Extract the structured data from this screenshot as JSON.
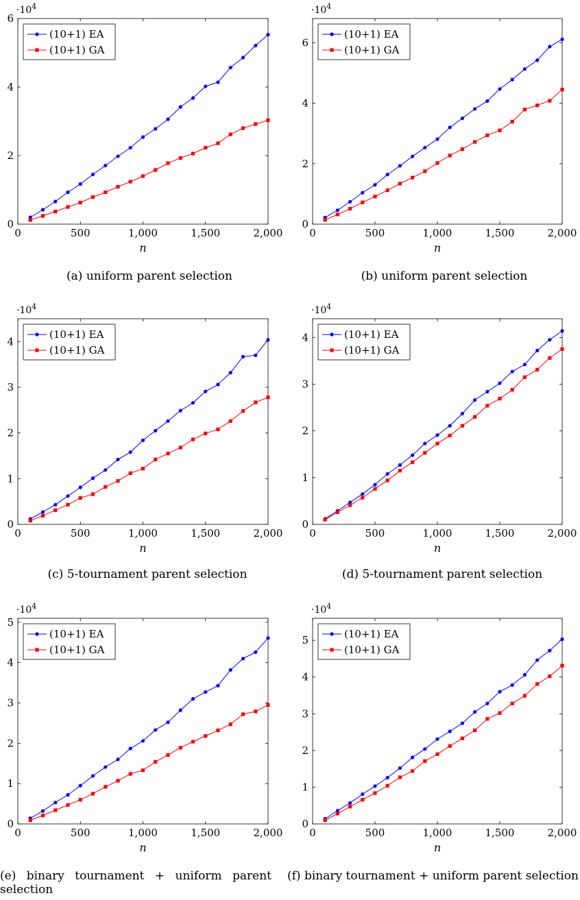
{
  "charts": [
    {
      "caption": "(a)  uniform parent selection",
      "chart_data": {
        "type": "line",
        "x": [
          100,
          200,
          300,
          400,
          500,
          600,
          700,
          800,
          900,
          1000,
          1100,
          1200,
          1300,
          1400,
          1500,
          1600,
          1700,
          1800,
          1900,
          2000
        ],
        "xlabel": "n",
        "ylabel": "",
        "xlim": [
          0,
          2000
        ],
        "ylim": [
          0,
          6
        ],
        "xticks": [
          "0",
          "500",
          "1,000",
          "1,500",
          "2,000"
        ],
        "xtick_values": [
          0,
          500,
          1000,
          1500,
          2000
        ],
        "yticks": [
          "0",
          "2",
          "4",
          "6"
        ],
        "ytick_values": [
          0,
          2,
          4,
          6
        ],
        "y_multiplier": "·10",
        "y_exponent": "4",
        "legend_position": "top-left",
        "grid": false,
        "series": [
          {
            "name": "(10+1) EA",
            "color": "#0000ff",
            "marker": "circle",
            "values": [
              0.2,
              0.42,
              0.66,
              0.93,
              1.17,
              1.45,
              1.71,
              1.98,
              2.23,
              2.54,
              2.78,
              3.06,
              3.42,
              3.68,
              4.02,
              4.14,
              4.57,
              4.86,
              5.21,
              5.53
            ]
          },
          {
            "name": "(10+1) GA",
            "color": "#ff0000",
            "marker": "square",
            "values": [
              0.12,
              0.24,
              0.37,
              0.5,
              0.63,
              0.79,
              0.93,
              1.09,
              1.24,
              1.4,
              1.58,
              1.78,
              1.93,
              2.06,
              2.23,
              2.36,
              2.62,
              2.8,
              2.92,
              3.03
            ]
          }
        ]
      }
    },
    {
      "caption": "(b)  uniform parent selection",
      "chart_data": {
        "type": "line",
        "x": [
          100,
          200,
          300,
          400,
          500,
          600,
          700,
          800,
          900,
          1000,
          1100,
          1200,
          1300,
          1400,
          1500,
          1600,
          1700,
          1800,
          1900,
          2000
        ],
        "xlabel": "n",
        "ylabel": "",
        "xlim": [
          0,
          2000
        ],
        "ylim": [
          0,
          6.8
        ],
        "xticks": [
          "0",
          "500",
          "1,000",
          "1,500",
          "2,000"
        ],
        "xtick_values": [
          0,
          500,
          1000,
          1500,
          2000
        ],
        "yticks": [
          "0",
          "2",
          "4",
          "6"
        ],
        "ytick_values": [
          0,
          2,
          4,
          6
        ],
        "y_multiplier": "·10",
        "y_exponent": "4",
        "legend_position": "top-left",
        "grid": false,
        "series": [
          {
            "name": "(10+1) EA",
            "color": "#0000ff",
            "marker": "circle",
            "values": [
              0.22,
              0.46,
              0.74,
              1.04,
              1.3,
              1.64,
              1.93,
              2.24,
              2.53,
              2.81,
              3.2,
              3.5,
              3.81,
              4.07,
              4.47,
              4.78,
              5.13,
              5.42,
              5.87,
              6.11
            ]
          },
          {
            "name": "(10+1) GA",
            "color": "#ff0000",
            "marker": "square",
            "values": [
              0.14,
              0.32,
              0.51,
              0.72,
              0.91,
              1.12,
              1.34,
              1.54,
              1.75,
              2.02,
              2.27,
              2.48,
              2.72,
              2.94,
              3.1,
              3.39,
              3.79,
              3.93,
              4.08,
              4.45
            ]
          }
        ]
      }
    },
    {
      "caption": "(c)  5-tournament parent selection",
      "chart_data": {
        "type": "line",
        "x": [
          100,
          200,
          300,
          400,
          500,
          600,
          700,
          800,
          900,
          1000,
          1100,
          1200,
          1300,
          1400,
          1500,
          1600,
          1700,
          1800,
          1900,
          2000
        ],
        "xlabel": "n",
        "ylabel": "",
        "xlim": [
          0,
          2000
        ],
        "ylim": [
          0,
          4.5
        ],
        "xticks": [
          "0",
          "500",
          "1,000",
          "1,500",
          "2,000"
        ],
        "xtick_values": [
          0,
          500,
          1000,
          1500,
          2000
        ],
        "yticks": [
          "0",
          "1",
          "2",
          "3",
          "4"
        ],
        "ytick_values": [
          0,
          1,
          2,
          3,
          4
        ],
        "y_multiplier": "·10",
        "y_exponent": "4",
        "legend_position": "top-left",
        "grid": false,
        "series": [
          {
            "name": "(10+1) EA",
            "color": "#0000ff",
            "marker": "circle",
            "values": [
              0.12,
              0.27,
              0.43,
              0.62,
              0.81,
              1.01,
              1.19,
              1.42,
              1.58,
              1.84,
              2.05,
              2.26,
              2.49,
              2.66,
              2.91,
              3.06,
              3.32,
              3.67,
              3.7,
              4.04
            ]
          },
          {
            "name": "(10+1) GA",
            "color": "#ff0000",
            "marker": "square",
            "values": [
              0.08,
              0.19,
              0.31,
              0.43,
              0.58,
              0.66,
              0.82,
              0.95,
              1.12,
              1.22,
              1.42,
              1.55,
              1.68,
              1.86,
              1.99,
              2.08,
              2.26,
              2.48,
              2.67,
              2.78
            ]
          }
        ]
      }
    },
    {
      "caption": "(d)  5-tournament parent selection",
      "chart_data": {
        "type": "line",
        "x": [
          100,
          200,
          300,
          400,
          500,
          600,
          700,
          800,
          900,
          1000,
          1100,
          1200,
          1300,
          1400,
          1500,
          1600,
          1700,
          1800,
          1900,
          2000
        ],
        "xlabel": "n",
        "ylabel": "",
        "xlim": [
          0,
          2000
        ],
        "ylim": [
          0,
          4.4
        ],
        "xticks": [
          "0",
          "500",
          "1,000",
          "1,500",
          "2,000"
        ],
        "xtick_values": [
          0,
          500,
          1000,
          1500,
          2000
        ],
        "yticks": [
          "0",
          "1",
          "2",
          "3",
          "4"
        ],
        "ytick_values": [
          0,
          1,
          2,
          3,
          4
        ],
        "y_multiplier": "·10",
        "y_exponent": "4",
        "legend_position": "top-left",
        "grid": false,
        "series": [
          {
            "name": "(10+1) EA",
            "color": "#0000ff",
            "marker": "circle",
            "values": [
              0.12,
              0.29,
              0.47,
              0.65,
              0.85,
              1.08,
              1.27,
              1.48,
              1.73,
              1.91,
              2.11,
              2.37,
              2.66,
              2.84,
              3.02,
              3.27,
              3.42,
              3.72,
              3.95,
              4.14
            ]
          },
          {
            "name": "(10+1) GA",
            "color": "#ff0000",
            "marker": "square",
            "values": [
              0.1,
              0.26,
              0.41,
              0.57,
              0.76,
              0.94,
              1.15,
              1.33,
              1.53,
              1.73,
              1.9,
              2.11,
              2.3,
              2.54,
              2.69,
              2.88,
              3.15,
              3.31,
              3.56,
              3.75
            ]
          }
        ]
      }
    },
    {
      "caption": "(e)  binary tournament + uniform parent selection",
      "chart_data": {
        "type": "line",
        "x": [
          100,
          200,
          300,
          400,
          500,
          600,
          700,
          800,
          900,
          1000,
          1100,
          1200,
          1300,
          1400,
          1500,
          1600,
          1700,
          1800,
          1900,
          2000
        ],
        "xlabel": "n",
        "ylabel": "",
        "xlim": [
          0,
          2000
        ],
        "ylim": [
          0,
          5.1
        ],
        "xticks": [
          "0",
          "500",
          "1,000",
          "1,500",
          "2,000"
        ],
        "xtick_values": [
          0,
          500,
          1000,
          1500,
          2000
        ],
        "yticks": [
          "0",
          "1",
          "2",
          "3",
          "4",
          "5"
        ],
        "ytick_values": [
          0,
          1,
          2,
          3,
          4,
          5
        ],
        "y_multiplier": "·10",
        "y_exponent": "4",
        "legend_position": "top-left",
        "grid": false,
        "series": [
          {
            "name": "(10+1) EA",
            "color": "#0000ff",
            "marker": "circle",
            "values": [
              0.14,
              0.32,
              0.53,
              0.72,
              0.95,
              1.19,
              1.41,
              1.6,
              1.87,
              2.06,
              2.33,
              2.52,
              2.82,
              3.1,
              3.27,
              3.43,
              3.82,
              4.1,
              4.26,
              4.61
            ]
          },
          {
            "name": "(10+1) GA",
            "color": "#ff0000",
            "marker": "square",
            "values": [
              0.09,
              0.21,
              0.34,
              0.47,
              0.6,
              0.75,
              0.92,
              1.07,
              1.24,
              1.33,
              1.54,
              1.71,
              1.89,
              2.04,
              2.18,
              2.32,
              2.47,
              2.72,
              2.79,
              2.95
            ]
          }
        ]
      }
    },
    {
      "caption": "(f)  binary tournament + uniform parent selection",
      "chart_data": {
        "type": "line",
        "x": [
          100,
          200,
          300,
          400,
          500,
          600,
          700,
          800,
          900,
          1000,
          1100,
          1200,
          1300,
          1400,
          1500,
          1600,
          1700,
          1800,
          1900,
          2000
        ],
        "xlabel": "n",
        "ylabel": "",
        "xlim": [
          0,
          2000
        ],
        "ylim": [
          0,
          5.6
        ],
        "xticks": [
          "0",
          "500",
          "1,000",
          "1,500",
          "2,000"
        ],
        "xtick_values": [
          0,
          500,
          1000,
          1500,
          2000
        ],
        "yticks": [
          "0",
          "1",
          "2",
          "3",
          "4",
          "5"
        ],
        "ytick_values": [
          0,
          1,
          2,
          3,
          4,
          5
        ],
        "y_multiplier": "·10",
        "y_exponent": "4",
        "legend_position": "top-left",
        "grid": false,
        "series": [
          {
            "name": "(10+1) EA",
            "color": "#0000ff",
            "marker": "circle",
            "values": [
              0.14,
              0.36,
              0.57,
              0.81,
              1.03,
              1.26,
              1.52,
              1.81,
              2.04,
              2.31,
              2.52,
              2.74,
              3.05,
              3.28,
              3.6,
              3.78,
              4.06,
              4.46,
              4.72,
              5.03
            ]
          },
          {
            "name": "(10+1) GA",
            "color": "#ff0000",
            "marker": "square",
            "values": [
              0.1,
              0.28,
              0.47,
              0.66,
              0.84,
              1.04,
              1.27,
              1.44,
              1.71,
              1.9,
              2.12,
              2.33,
              2.55,
              2.86,
              3.02,
              3.28,
              3.49,
              3.81,
              4.02,
              4.31
            ]
          }
        ]
      }
    }
  ]
}
